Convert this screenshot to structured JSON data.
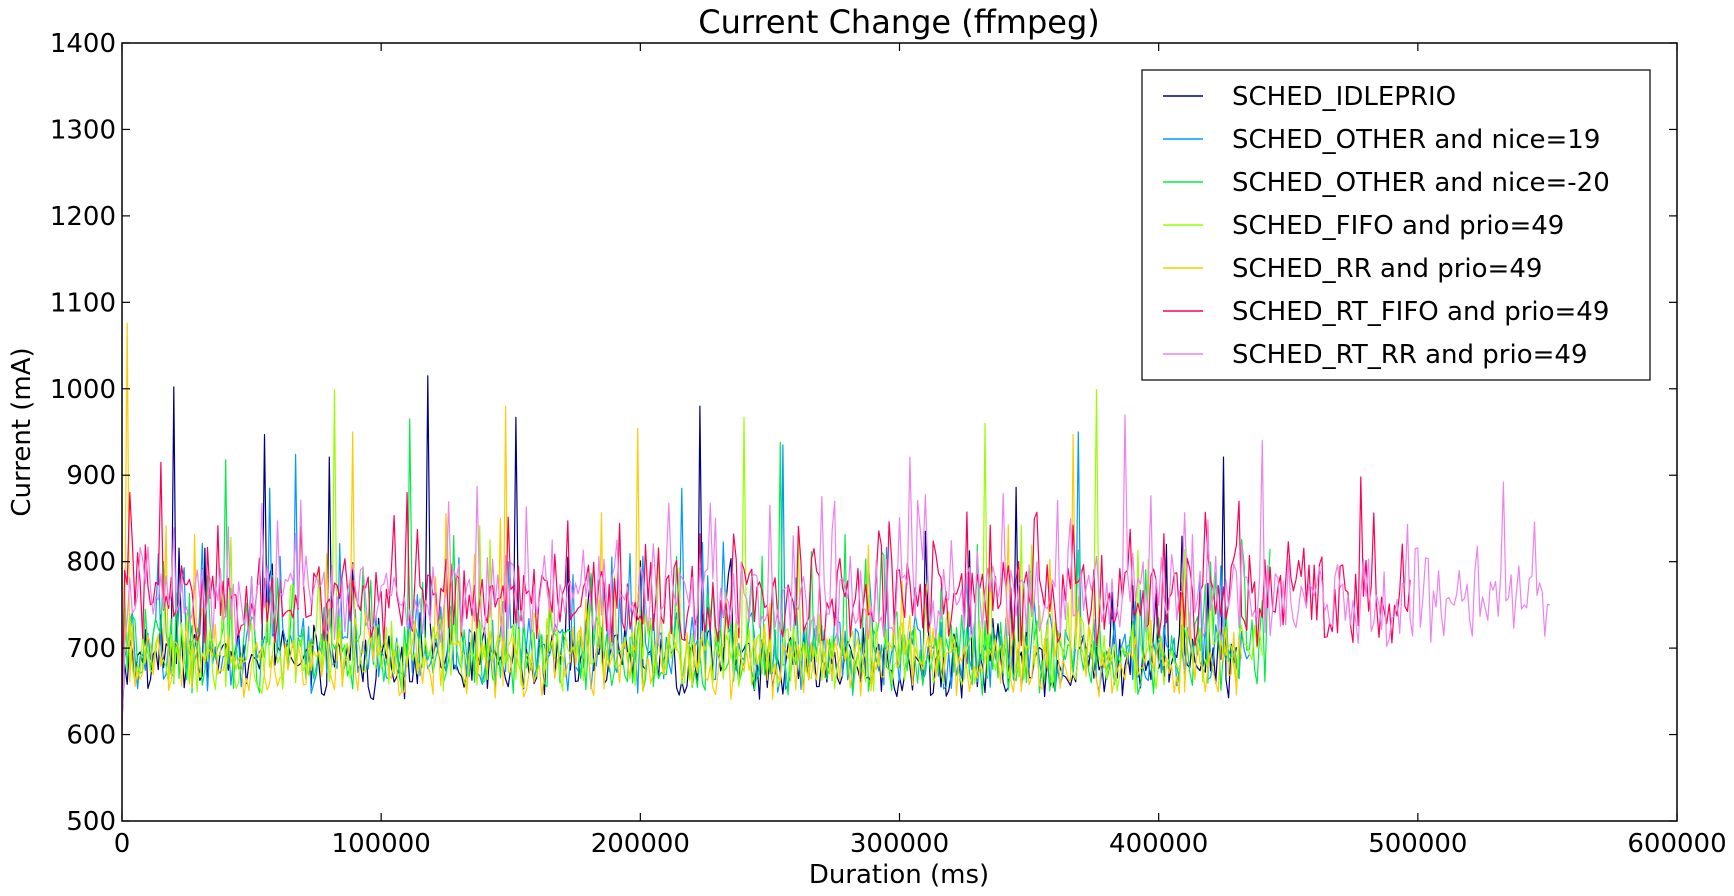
{
  "chart_data": {
    "type": "line",
    "title": "Current Change (ffmpeg)",
    "xlabel": "Duration (ms)",
    "ylabel": "Current (mA)",
    "xlim": [
      0,
      600000
    ],
    "ylim": [
      500,
      1400
    ],
    "xticks": [
      0,
      100000,
      200000,
      300000,
      400000,
      500000,
      600000
    ],
    "xtick_labels": [
      "0",
      "100000",
      "200000",
      "300000",
      "400000",
      "500000",
      "600000"
    ],
    "yticks": [
      500,
      600,
      700,
      800,
      900,
      1000,
      1100,
      1200,
      1300,
      1400
    ],
    "ytick_labels": [
      "500",
      "600",
      "700",
      "800",
      "900",
      "1000",
      "1100",
      "1200",
      "1300",
      "1400"
    ],
    "grid": false,
    "legend_position": "top-right",
    "series": [
      {
        "name": "SCHED_IDLEPRIO",
        "color": "#000080",
        "x_end": 430000,
        "low": 640,
        "high": 740,
        "spike_max": 1015,
        "peaks": [
          [
            20000,
            1002
          ],
          [
            55000,
            947
          ],
          [
            80000,
            921
          ],
          [
            118000,
            1015
          ],
          [
            152000,
            967
          ],
          [
            223000,
            980
          ],
          [
            345000,
            886
          ],
          [
            425000,
            921
          ]
        ]
      },
      {
        "name": "SCHED_OTHER and nice=19",
        "color": "#0099FF",
        "x_end": 435000,
        "low": 645,
        "high": 760,
        "spike_max": 950,
        "peaks": [
          [
            57000,
            885
          ],
          [
            67000,
            924
          ],
          [
            216000,
            885
          ],
          [
            255000,
            935
          ],
          [
            369000,
            950
          ]
        ]
      },
      {
        "name": "SCHED_OTHER and nice=-20",
        "color": "#00EE44",
        "x_end": 443000,
        "low": 645,
        "high": 760,
        "spike_max": 965,
        "peaks": [
          [
            40000,
            918
          ],
          [
            111000,
            965
          ],
          [
            254000,
            938
          ]
        ]
      },
      {
        "name": "SCHED_FIFO and prio=49",
        "color": "#99FF00",
        "x_end": 440000,
        "low": 645,
        "high": 760,
        "spike_max": 999,
        "peaks": [
          [
            82000,
            999
          ],
          [
            240000,
            967
          ],
          [
            333000,
            960
          ],
          [
            376000,
            999
          ]
        ]
      },
      {
        "name": "SCHED_RR and prio=49",
        "color": "#FFCC00",
        "x_end": 432000,
        "low": 638,
        "high": 740,
        "spike_max": 1076,
        "peaks": [
          [
            2000,
            1076
          ],
          [
            89000,
            950
          ],
          [
            148000,
            980
          ],
          [
            199000,
            954
          ],
          [
            367000,
            947
          ]
        ]
      },
      {
        "name": "SCHED_RT_FIFO and prio=49",
        "color": "#FF0055",
        "x_end": 497000,
        "low": 700,
        "high": 830,
        "spike_max": 915,
        "peaks": [
          [
            3000,
            880
          ],
          [
            15000,
            915
          ],
          [
            110000,
            880
          ],
          [
            431000,
            870
          ],
          [
            478000,
            898
          ]
        ]
      },
      {
        "name": "SCHED_RT_RR and prio=49",
        "color": "#EE82EE",
        "x_end": 551000,
        "low": 700,
        "high": 830,
        "spike_max": 970,
        "peaks": [
          [
            137000,
            887
          ],
          [
            304000,
            921
          ],
          [
            387000,
            970
          ],
          [
            440000,
            940
          ],
          [
            533000,
            892
          ]
        ]
      }
    ]
  }
}
